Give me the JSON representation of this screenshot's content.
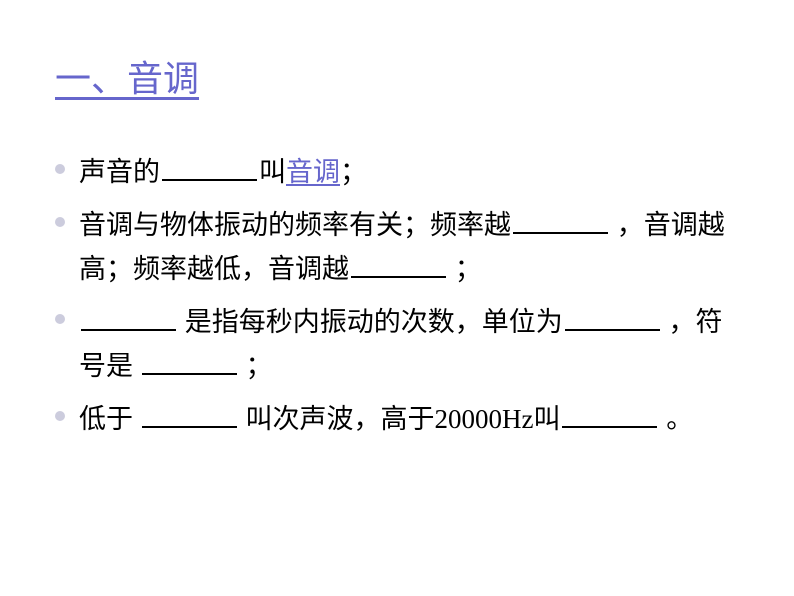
{
  "title": "一、音调",
  "items": [
    {
      "segments": [
        {
          "type": "text",
          "value": "声音的"
        },
        {
          "type": "blank"
        },
        {
          "type": "text",
          "value": "叫"
        },
        {
          "type": "keyword",
          "value": "音调"
        },
        {
          "type": "text",
          "value": "；"
        }
      ]
    },
    {
      "segments": [
        {
          "type": "text",
          "value": "音调与物体振动的频率有关；频率越"
        },
        {
          "type": "blank"
        },
        {
          "type": "text",
          "value": " ，音调越高；频率越低，音调越"
        },
        {
          "type": "blank"
        },
        {
          "type": "text",
          "value": " ；"
        }
      ]
    },
    {
      "segments": [
        {
          "type": "blank"
        },
        {
          "type": "text",
          "value": " 是指每秒内振动的次数，单位为"
        },
        {
          "type": "blank"
        },
        {
          "type": "text",
          "value": " ，符号是 "
        },
        {
          "type": "blank"
        },
        {
          "type": "text",
          "value": " ；"
        }
      ]
    },
    {
      "segments": [
        {
          "type": "text",
          "value": "低于 "
        },
        {
          "type": "blank"
        },
        {
          "type": "text",
          "value": " 叫次声波，高于20000Hz叫"
        },
        {
          "type": "blank"
        },
        {
          "type": "text",
          "value": " 。"
        }
      ]
    }
  ],
  "colors": {
    "title_color": "#6666cc",
    "keyword_color": "#6666cc",
    "text_color": "#000000",
    "bullet_color": "#ccccdd",
    "background": "#ffffff"
  },
  "typography": {
    "title_fontsize": 36,
    "body_fontsize": 27,
    "font_family": "SimSun"
  }
}
